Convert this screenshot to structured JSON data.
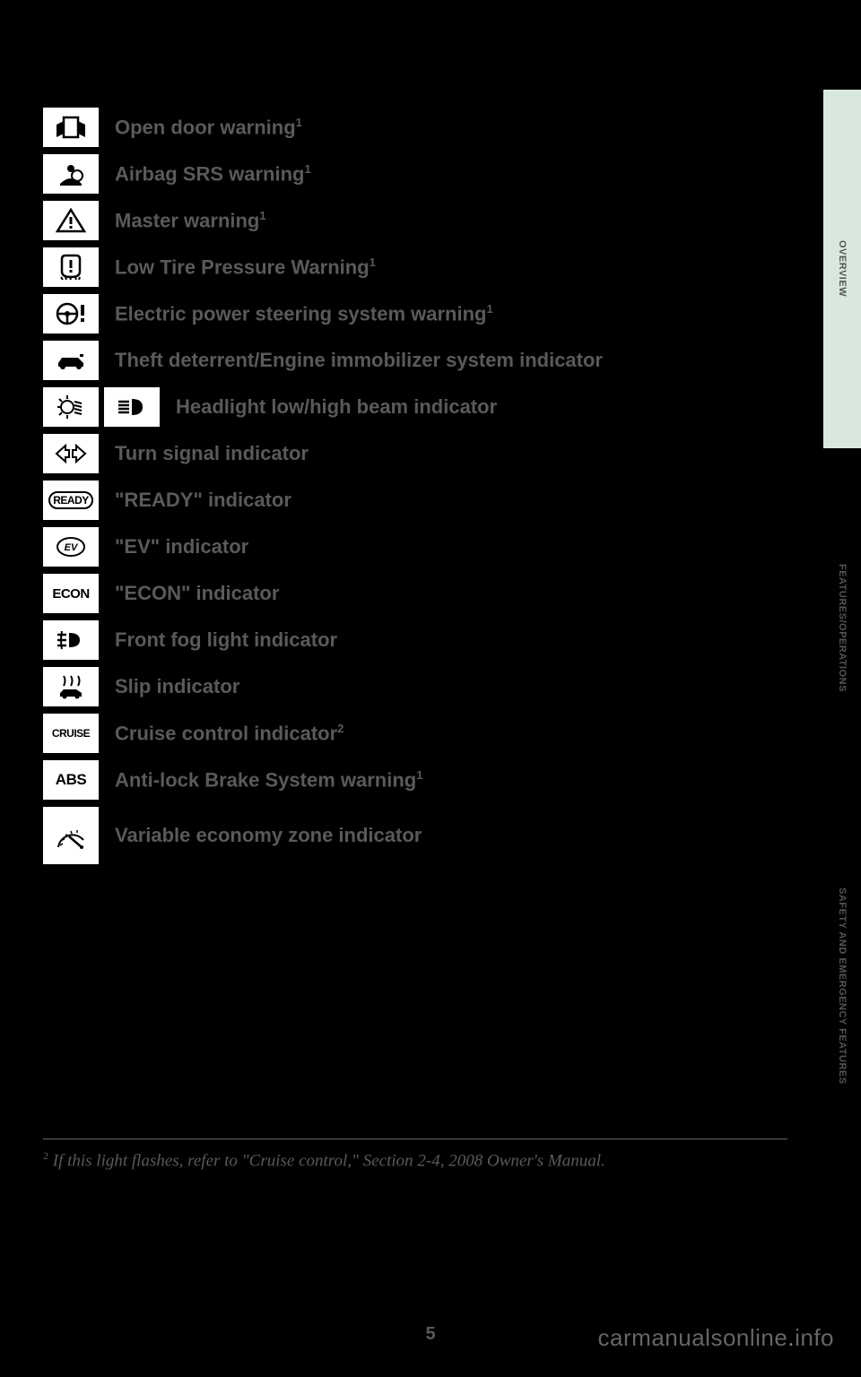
{
  "indicators": [
    {
      "label": "Open door warning",
      "sup": "1",
      "svgs": [
        "door-open"
      ]
    },
    {
      "label": "Airbag SRS warning",
      "sup": "1",
      "svgs": [
        "airbag"
      ]
    },
    {
      "label": "Master warning",
      "sup": "1",
      "svgs": [
        "triangle-exclaim"
      ]
    },
    {
      "label": "Low Tire Pressure Warning",
      "sup": "1",
      "svgs": [
        "tire-pressure"
      ]
    },
    {
      "label": "Electric power steering system warning",
      "sup": "1",
      "svgs": [
        "steering-exclaim"
      ]
    },
    {
      "label": "Theft deterrent/Engine immobilizer system indicator",
      "sup": "",
      "svgs": [
        "car-key"
      ]
    },
    {
      "label": "Headlight low/high beam indicator",
      "sup": "",
      "svgs": [
        "headlight-low",
        "headlight-high"
      ]
    },
    {
      "label": "Turn signal indicator",
      "sup": "",
      "svgs": [
        "turn-signals"
      ]
    },
    {
      "label": "\"READY\" indicator",
      "sup": "",
      "svgs": [
        "ready"
      ]
    },
    {
      "label": "\"EV\" indicator",
      "sup": "",
      "svgs": [
        "ev"
      ]
    },
    {
      "label": "\"ECON\" indicator",
      "sup": "",
      "svgs": [
        "econ"
      ]
    },
    {
      "label": "Front fog light indicator",
      "sup": "",
      "svgs": [
        "fog-light"
      ]
    },
    {
      "label": "Slip indicator",
      "sup": "",
      "svgs": [
        "slip"
      ]
    },
    {
      "label": "Cruise control indicator",
      "sup": "2",
      "svgs": [
        "cruise"
      ]
    },
    {
      "label": "Anti-lock Brake System warning",
      "sup": "1",
      "svgs": [
        "abs"
      ]
    },
    {
      "label": "Variable economy zone indicator",
      "sup": "",
      "svgs": [
        "gauge"
      ],
      "tall": true
    }
  ],
  "footnote": "If this light flashes, refer to \"Cruise control,\" Section 2-4, 2008 Owner's Manual.",
  "footnote_sup": "2",
  "page_number": "5",
  "watermark": {
    "left": "carmanualsonline",
    "right": "info"
  },
  "side_tabs": [
    {
      "label": "OVERVIEW",
      "active": true
    },
    {
      "label": "FEATURES/OPERATIONS",
      "active": false
    },
    {
      "label": "SAFETY AND EMERGENCY FEATURES",
      "active": false
    }
  ],
  "colors": {
    "background": "#000000",
    "text_muted": "#5a5a5a",
    "icon_box_bg": "#ffffff",
    "tab_active_bg": "#d9e8dc"
  }
}
